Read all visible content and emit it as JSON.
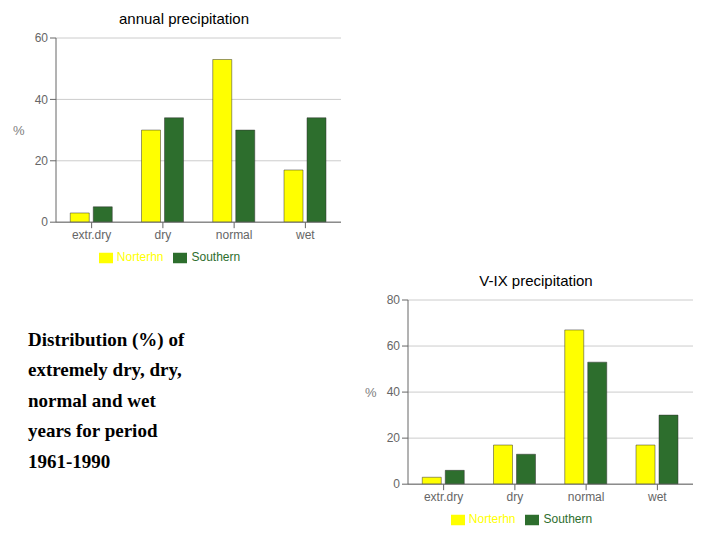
{
  "chart_data": [
    {
      "type": "bar",
      "title": "annual precipitation",
      "categories": [
        "extr.dry",
        "dry",
        "normal",
        "wet"
      ],
      "series": [
        {
          "name": "Norterhn",
          "color": "#ffff00",
          "values": [
            3,
            30,
            53,
            17
          ]
        },
        {
          "name": "Southern",
          "color": "#2d6e2d",
          "values": [
            5,
            34,
            30,
            34
          ]
        }
      ],
      "ylabel": "%",
      "ylim": [
        0,
        60
      ],
      "yticks": [
        0,
        20,
        40,
        60
      ],
      "grid": true,
      "legend": "bottom",
      "annotations": [
        "Distribution (%) of",
        "extremely dry, dry,",
        "normal and wet",
        "years for period",
        "1961-1990"
      ]
    },
    {
      "type": "bar",
      "title": "V-IX precipitation",
      "categories": [
        "extr.dry",
        "dry",
        "normal",
        "wet"
      ],
      "series": [
        {
          "name": "Norterhn",
          "color": "#ffff00",
          "values": [
            3,
            17,
            67,
            17
          ]
        },
        {
          "name": "Southern",
          "color": "#2d6e2d",
          "values": [
            6,
            13,
            53,
            30
          ]
        }
      ],
      "ylabel": "%",
      "ylim": [
        0,
        80
      ],
      "yticks": [
        0,
        20,
        40,
        60,
        80
      ],
      "grid": true,
      "legend": "bottom"
    }
  ]
}
